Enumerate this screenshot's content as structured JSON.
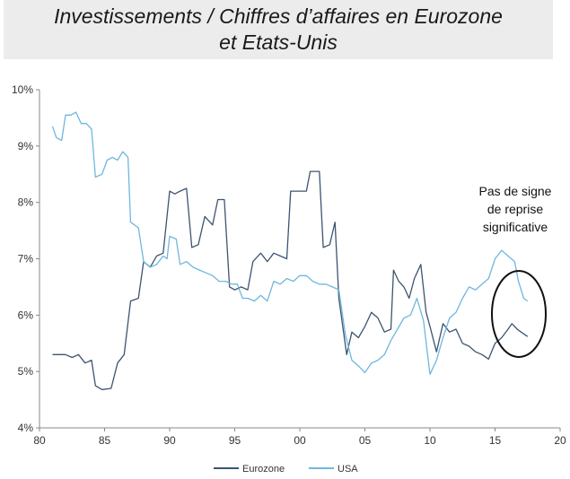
{
  "title_line_1": "Investissements / Chiffres d’affaires en Eurozone",
  "title_line_2": "et Etats-Unis",
  "annotation": [
    "Pas de signe",
    "de reprise",
    "significative"
  ],
  "chart_data": {
    "type": "line",
    "title": "Investissements / Chiffres d’affaires en Eurozone et Etats-Unis",
    "xlabel": "",
    "ylabel": "",
    "xlim": [
      1980,
      2020
    ],
    "ylim": [
      4,
      10
    ],
    "x_tick_labels": [
      "80",
      "85",
      "90",
      "95",
      "00",
      "05",
      "10",
      "15",
      "20"
    ],
    "x_tick_values": [
      1980,
      1985,
      1990,
      1995,
      2000,
      2005,
      2010,
      2015,
      2020
    ],
    "y_tick_labels": [
      "4%",
      "5%",
      "6%",
      "7%",
      "8%",
      "9%",
      "10%"
    ],
    "y_tick_values": [
      4,
      5,
      6,
      7,
      8,
      9,
      10
    ],
    "grid": false,
    "legend_placement": "bottom-center",
    "series": [
      {
        "name": "Eurozone",
        "color": "#3d5470",
        "points": [
          [
            1981.0,
            5.3
          ],
          [
            1982.0,
            5.3
          ],
          [
            1982.5,
            5.25
          ],
          [
            1983.0,
            5.3
          ],
          [
            1983.5,
            5.15
          ],
          [
            1984.0,
            5.2
          ],
          [
            1984.3,
            4.75
          ],
          [
            1984.8,
            4.68
          ],
          [
            1985.5,
            4.7
          ],
          [
            1986.0,
            5.15
          ],
          [
            1986.5,
            5.3
          ],
          [
            1987.0,
            6.25
          ],
          [
            1987.6,
            6.3
          ],
          [
            1988.0,
            6.95
          ],
          [
            1988.5,
            6.85
          ],
          [
            1989.0,
            7.05
          ],
          [
            1989.5,
            7.1
          ],
          [
            1990.0,
            8.2
          ],
          [
            1990.4,
            8.15
          ],
          [
            1990.8,
            8.2
          ],
          [
            1991.3,
            8.25
          ],
          [
            1991.7,
            7.2
          ],
          [
            1992.2,
            7.25
          ],
          [
            1992.7,
            7.75
          ],
          [
            1993.3,
            7.6
          ],
          [
            1993.7,
            8.05
          ],
          [
            1994.2,
            8.05
          ],
          [
            1994.6,
            6.5
          ],
          [
            1995.0,
            6.45
          ],
          [
            1995.5,
            6.5
          ],
          [
            1996.0,
            6.45
          ],
          [
            1996.4,
            6.95
          ],
          [
            1997.0,
            7.1
          ],
          [
            1997.5,
            6.95
          ],
          [
            1998.0,
            7.1
          ],
          [
            1998.5,
            7.05
          ],
          [
            1999.0,
            7.0
          ],
          [
            1999.3,
            8.2
          ],
          [
            2000.0,
            8.2
          ],
          [
            2000.5,
            8.2
          ],
          [
            2000.8,
            8.55
          ],
          [
            2001.5,
            8.55
          ],
          [
            2001.8,
            7.2
          ],
          [
            2002.3,
            7.25
          ],
          [
            2002.7,
            7.65
          ],
          [
            2003.0,
            6.3
          ],
          [
            2003.6,
            5.3
          ],
          [
            2004.0,
            5.7
          ],
          [
            2004.5,
            5.6
          ],
          [
            2005.0,
            5.8
          ],
          [
            2005.5,
            6.05
          ],
          [
            2006.0,
            5.95
          ],
          [
            2006.5,
            5.7
          ],
          [
            2007.0,
            5.75
          ],
          [
            2007.2,
            6.8
          ],
          [
            2007.6,
            6.6
          ],
          [
            2008.0,
            6.5
          ],
          [
            2008.4,
            6.3
          ],
          [
            2008.8,
            6.65
          ],
          [
            2009.3,
            6.9
          ],
          [
            2009.7,
            6.05
          ],
          [
            2010.0,
            5.8
          ],
          [
            2010.5,
            5.35
          ],
          [
            2011.0,
            5.85
          ],
          [
            2011.5,
            5.7
          ],
          [
            2012.0,
            5.75
          ],
          [
            2012.5,
            5.5
          ],
          [
            2013.0,
            5.45
          ],
          [
            2013.5,
            5.35
          ],
          [
            2014.0,
            5.3
          ],
          [
            2014.5,
            5.22
          ],
          [
            2015.0,
            5.5
          ],
          [
            2015.5,
            5.6
          ],
          [
            2016.0,
            5.75
          ],
          [
            2016.3,
            5.85
          ],
          [
            2016.7,
            5.75
          ],
          [
            2017.0,
            5.7
          ],
          [
            2017.5,
            5.62
          ]
        ]
      },
      {
        "name": "USA",
        "color": "#6fb7df",
        "points": [
          [
            1981.0,
            9.35
          ],
          [
            1981.3,
            9.15
          ],
          [
            1981.7,
            9.1
          ],
          [
            1982.0,
            9.55
          ],
          [
            1982.4,
            9.55
          ],
          [
            1982.8,
            9.6
          ],
          [
            1983.2,
            9.4
          ],
          [
            1983.6,
            9.4
          ],
          [
            1984.0,
            9.3
          ],
          [
            1984.3,
            8.45
          ],
          [
            1984.8,
            8.5
          ],
          [
            1985.2,
            8.75
          ],
          [
            1985.6,
            8.8
          ],
          [
            1986.0,
            8.75
          ],
          [
            1986.4,
            8.9
          ],
          [
            1986.8,
            8.8
          ],
          [
            1987.0,
            7.65
          ],
          [
            1987.6,
            7.55
          ],
          [
            1988.0,
            6.95
          ],
          [
            1988.5,
            6.85
          ],
          [
            1989.0,
            6.9
          ],
          [
            1989.5,
            7.05
          ],
          [
            1989.8,
            7.0
          ],
          [
            1990.0,
            7.4
          ],
          [
            1990.5,
            7.35
          ],
          [
            1990.8,
            6.9
          ],
          [
            1991.3,
            6.95
          ],
          [
            1991.8,
            6.85
          ],
          [
            1992.3,
            6.8
          ],
          [
            1992.8,
            6.75
          ],
          [
            1993.3,
            6.7
          ],
          [
            1993.8,
            6.6
          ],
          [
            1994.3,
            6.6
          ],
          [
            1994.8,
            6.55
          ],
          [
            1995.2,
            6.55
          ],
          [
            1995.6,
            6.3
          ],
          [
            1996.0,
            6.3
          ],
          [
            1996.5,
            6.25
          ],
          [
            1997.0,
            6.35
          ],
          [
            1997.5,
            6.25
          ],
          [
            1998.0,
            6.6
          ],
          [
            1998.5,
            6.55
          ],
          [
            1999.0,
            6.65
          ],
          [
            1999.5,
            6.6
          ],
          [
            2000.0,
            6.7
          ],
          [
            2000.5,
            6.7
          ],
          [
            2001.0,
            6.6
          ],
          [
            2001.5,
            6.55
          ],
          [
            2002.0,
            6.55
          ],
          [
            2002.5,
            6.5
          ],
          [
            2003.0,
            6.45
          ],
          [
            2003.5,
            5.65
          ],
          [
            2004.0,
            5.2
          ],
          [
            2004.5,
            5.1
          ],
          [
            2005.0,
            4.98
          ],
          [
            2005.5,
            5.15
          ],
          [
            2006.0,
            5.2
          ],
          [
            2006.5,
            5.3
          ],
          [
            2007.0,
            5.55
          ],
          [
            2007.5,
            5.75
          ],
          [
            2008.0,
            5.95
          ],
          [
            2008.5,
            6.0
          ],
          [
            2009.0,
            6.3
          ],
          [
            2009.5,
            5.9
          ],
          [
            2010.0,
            4.95
          ],
          [
            2010.5,
            5.2
          ],
          [
            2011.0,
            5.6
          ],
          [
            2011.5,
            5.95
          ],
          [
            2012.0,
            6.05
          ],
          [
            2012.5,
            6.3
          ],
          [
            2013.0,
            6.5
          ],
          [
            2013.5,
            6.45
          ],
          [
            2014.0,
            6.55
          ],
          [
            2014.5,
            6.65
          ],
          [
            2015.0,
            7.0
          ],
          [
            2015.5,
            7.15
          ],
          [
            2016.0,
            7.05
          ],
          [
            2016.5,
            6.95
          ],
          [
            2016.8,
            6.6
          ],
          [
            2017.2,
            6.3
          ],
          [
            2017.5,
            6.25
          ]
        ]
      }
    ],
    "annotations": [
      {
        "text": "Pas de signe de reprise significative",
        "target_x": [
          2015,
          2019
        ],
        "target_y": [
          4.75,
          6.2
        ]
      }
    ]
  }
}
